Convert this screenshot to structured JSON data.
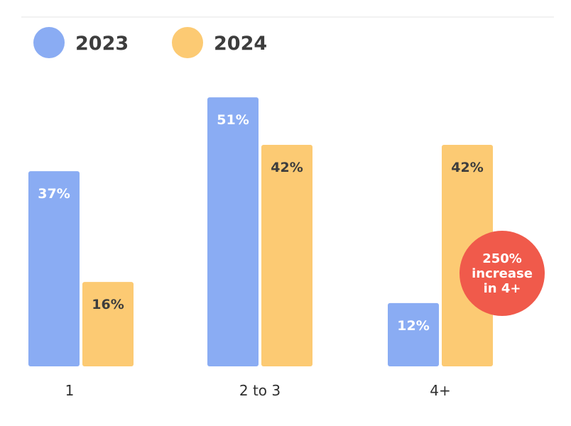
{
  "chart_data": {
    "type": "bar",
    "categories": [
      "1",
      "2 to 3",
      "4+"
    ],
    "series": [
      {
        "name": "2023",
        "values": [
          37,
          51,
          12
        ],
        "labels": [
          "37%",
          "51%",
          "12%"
        ],
        "color": "#8aacf3",
        "label_color": "#ffffff"
      },
      {
        "name": "2024",
        "values": [
          16,
          42,
          42
        ],
        "labels": [
          "16%",
          "42%",
          "42%"
        ],
        "color": "#fcca73",
        "label_color": "#3d3d3d"
      }
    ],
    "ylim": [
      0,
      60
    ],
    "grid": false,
    "legend_position": "top-left",
    "title": "",
    "xlabel": "",
    "ylabel": "",
    "annotation": {
      "lines": [
        "250%",
        "increase",
        "in 4+"
      ],
      "color": "#f05a4b"
    }
  }
}
